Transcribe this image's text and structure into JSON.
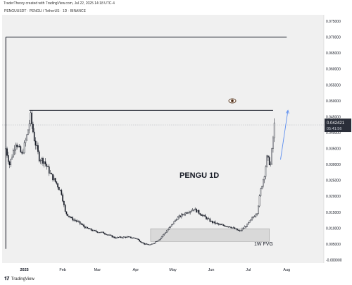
{
  "header": {
    "attribution": "TraderTheory created with TradingView.com, Jul 22, 2025 14:18 UTC-4",
    "symbol_line": "PENGUUSDT · PENGU / TetherUS · 1D · BINANCE"
  },
  "footer": {
    "brand": "TradingView"
  },
  "price_tag": {
    "price": "0.042421",
    "countdown": "05:41:56",
    "value": 0.042421
  },
  "annotations": {
    "title": "PENGU 1D",
    "fvg_label": "1W FVG",
    "eye_icon": "eye-icon"
  },
  "colors": {
    "bull": "#131722",
    "bear": "#131722",
    "plot_bg": "#f0f0f0",
    "axis_bg": "#ffffff",
    "arrow": "#5b8def",
    "price_tag_bg": "#2a2e39",
    "fvg_fill": "#d9d9d9"
  },
  "chart_data": {
    "type": "candlestick",
    "title": "PENGU 1D",
    "xlabel": "",
    "ylabel": "",
    "x_ticks": [
      "2025",
      "Feb",
      "Mar",
      "Apr",
      "May",
      "Jun",
      "Jul",
      "Aug"
    ],
    "y_ticks": [
      "-0.000000",
      "0.005000",
      "0.010000",
      "0.015000",
      "0.020000",
      "0.025000",
      "0.030000",
      "0.035000",
      "0.040000",
      "0.045000",
      "0.050000",
      "0.055000",
      "0.060000",
      "0.065000",
      "0.070000",
      "0.075000"
    ],
    "ylim": [
      -0.001,
      0.077
    ],
    "xlim": [
      "2024-12-14",
      "2025-08-31"
    ],
    "series_points": [
      [
        "2024-12-17",
        0.035
      ],
      [
        "2024-12-20",
        0.03
      ],
      [
        "2024-12-25",
        0.037
      ],
      [
        "2024-12-30",
        0.033
      ],
      [
        "2025-01-03",
        0.039
      ],
      [
        "2025-01-06",
        0.045
      ],
      [
        "2025-01-09",
        0.038
      ],
      [
        "2025-01-13",
        0.032
      ],
      [
        "2025-01-17",
        0.031
      ],
      [
        "2025-01-22",
        0.027
      ],
      [
        "2025-01-27",
        0.024
      ],
      [
        "2025-01-31",
        0.021
      ],
      [
        "2025-02-03",
        0.015
      ],
      [
        "2025-02-08",
        0.013
      ],
      [
        "2025-02-13",
        0.012
      ],
      [
        "2025-02-20",
        0.01
      ],
      [
        "2025-02-27",
        0.009
      ],
      [
        "2025-03-06",
        0.0085
      ],
      [
        "2025-03-15",
        0.007
      ],
      [
        "2025-03-25",
        0.0072
      ],
      [
        "2025-04-01",
        0.0068
      ],
      [
        "2025-04-08",
        0.005
      ],
      [
        "2025-04-13",
        0.0047
      ],
      [
        "2025-04-20",
        0.0065
      ],
      [
        "2025-04-28",
        0.01
      ],
      [
        "2025-05-04",
        0.013
      ],
      [
        "2025-05-12",
        0.015
      ],
      [
        "2025-05-18",
        0.016
      ],
      [
        "2025-05-25",
        0.014
      ],
      [
        "2025-06-01",
        0.012
      ],
      [
        "2025-06-08",
        0.011
      ],
      [
        "2025-06-16",
        0.0105
      ],
      [
        "2025-06-24",
        0.009
      ],
      [
        "2025-06-30",
        0.011
      ],
      [
        "2025-07-04",
        0.013
      ],
      [
        "2025-07-08",
        0.015
      ],
      [
        "2025-07-11",
        0.022
      ],
      [
        "2025-07-14",
        0.027
      ],
      [
        "2025-07-16",
        0.032
      ],
      [
        "2025-07-19",
        0.03
      ],
      [
        "2025-07-22",
        0.0424
      ]
    ],
    "lines": [
      {
        "name": "upper-level",
        "y": 0.07,
        "x_from": "2024-12-17",
        "x_to": "2025-08-01"
      },
      {
        "name": "ath-level",
        "y": 0.047,
        "x_from": "2025-01-05",
        "x_to": "2025-07-21"
      },
      {
        "name": "vertical-marker",
        "x": "2024-12-17",
        "y_from": 0.0035,
        "y_to": 0.07
      }
    ],
    "zones": [
      {
        "name": "1W FVG",
        "x_from": "2025-04-13",
        "x_to": "2025-07-18",
        "y_from": 0.0058,
        "y_to": 0.0098
      }
    ],
    "projection": {
      "from": [
        "2025-07-27",
        0.0315
      ],
      "to": [
        "2025-08-02",
        0.047
      ]
    },
    "grid": false,
    "legend": "none"
  }
}
